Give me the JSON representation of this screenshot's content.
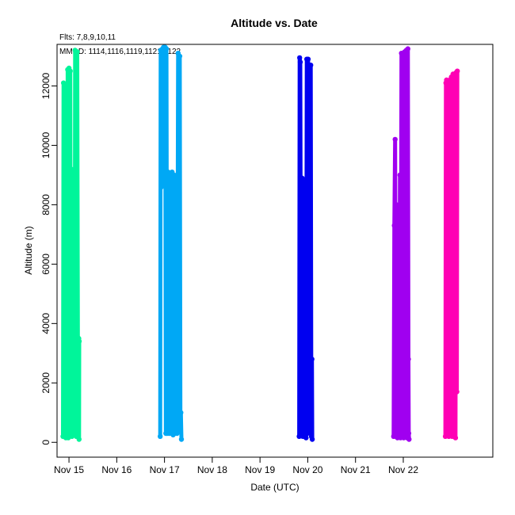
{
  "chart_data": {
    "type": "line",
    "title": "Altitude  vs. Date",
    "annotations": [
      "Flts: 7,8,9,10,11",
      "MMDD: 1114,1116,1119,1121,1122"
    ],
    "xlabel": "Date (UTC)",
    "ylabel": "Altitude (m)",
    "xlim": [
      "2019-11-14 18:00",
      "2019-11-23 21:00"
    ],
    "ylim": [
      -500,
      13400
    ],
    "x_ticks": [
      {
        "date": "2019-11-15",
        "label": "Nov 15"
      },
      {
        "date": "2019-11-16",
        "label": "Nov 16"
      },
      {
        "date": "2019-11-17",
        "label": "Nov 17"
      },
      {
        "date": "2019-11-18",
        "label": "Nov 18"
      },
      {
        "date": "2019-11-19",
        "label": "Nov 19"
      },
      {
        "date": "2019-11-20",
        "label": "Nov 20"
      },
      {
        "date": "2019-11-21",
        "label": "Nov 21"
      },
      {
        "date": "2019-11-22",
        "label": "Nov 22"
      }
    ],
    "y_ticks": [
      0,
      2000,
      4000,
      6000,
      8000,
      10000,
      12000
    ],
    "grid": false,
    "series": [
      {
        "color": "#00f59a",
        "x": [
          "2019-11-14 21:00",
          "2019-11-14 21:15",
          "2019-11-14 21:40",
          "2019-11-14 21:55",
          "2019-11-14 22:10",
          "2019-11-14 22:25",
          "2019-11-14 22:45",
          "2019-11-14 23:00",
          "2019-11-14 23:20",
          "2019-11-14 23:40",
          "2019-11-15 00:00",
          "2019-11-15 00:15",
          "2019-11-15 00:40",
          "2019-11-15 00:55",
          "2019-11-15 01:10",
          "2019-11-15 01:30",
          "2019-11-15 02:00",
          "2019-11-15 02:50",
          "2019-11-15 03:05",
          "2019-11-15 03:40",
          "2019-11-15 04:10",
          "2019-11-15 04:35",
          "2019-11-15 04:55",
          "2019-11-15 05:05",
          "2019-11-15 05:10"
        ],
        "y": [
          200,
          12100,
          11800,
          300,
          8800,
          150,
          8900,
          200,
          12550,
          150,
          12600,
          300,
          12500,
          400,
          9200,
          200,
          9000,
          300,
          13200,
          200,
          13150,
          400,
          3500,
          100,
          3400
        ]
      },
      {
        "color": "#00a8f5",
        "x": [
          "2019-11-16 21:50",
          "2019-11-16 22:05",
          "2019-11-16 22:30",
          "2019-11-16 23:00",
          "2019-11-16 23:30",
          "2019-11-17 00:00",
          "2019-11-17 00:20",
          "2019-11-17 00:40",
          "2019-11-17 01:00",
          "2019-11-17 01:20",
          "2019-11-17 01:50",
          "2019-11-17 02:20",
          "2019-11-17 02:50",
          "2019-11-17 03:20",
          "2019-11-17 03:50",
          "2019-11-17 04:20",
          "2019-11-17 04:50",
          "2019-11-17 05:20",
          "2019-11-17 05:50",
          "2019-11-17 06:20",
          "2019-11-17 06:50",
          "2019-11-17 07:20",
          "2019-11-17 07:40",
          "2019-11-17 08:00",
          "2019-11-17 08:15",
          "2019-11-17 08:30"
        ],
        "y": [
          200,
          13200,
          8600,
          13250,
          13300,
          9200,
          13300,
          300,
          13250,
          300,
          9100,
          300,
          9000,
          300,
          9100,
          250,
          9000,
          300,
          8900,
          300,
          13100,
          400,
          13000,
          600,
          1000,
          100
        ]
      },
      {
        "color": "#0000f0",
        "x": [
          "2019-11-19 19:40",
          "2019-11-19 19:55",
          "2019-11-19 20:15",
          "2019-11-19 20:40",
          "2019-11-19 21:05",
          "2019-11-19 21:30",
          "2019-11-19 21:55",
          "2019-11-19 22:20",
          "2019-11-19 22:45",
          "2019-11-19 23:10",
          "2019-11-19 23:30",
          "2019-11-19 23:50",
          "2019-11-20 00:10",
          "2019-11-20 00:30",
          "2019-11-20 00:50",
          "2019-11-20 01:10",
          "2019-11-20 01:30",
          "2019-11-20 01:50",
          "2019-11-20 02:05",
          "2019-11-20 02:15"
        ],
        "y": [
          200,
          12950,
          12800,
          300,
          8900,
          200,
          8850,
          200,
          8800,
          150,
          12900,
          300,
          12900,
          500,
          12700,
          400,
          12700,
          200,
          2800,
          100
        ]
      },
      {
        "color": "#a000f0",
        "x": [
          "2019-11-21 19:10",
          "2019-11-21 19:30",
          "2019-11-21 19:55",
          "2019-11-21 20:15",
          "2019-11-21 20:40",
          "2019-11-21 21:05",
          "2019-11-21 21:30",
          "2019-11-21 21:55",
          "2019-11-21 22:20",
          "2019-11-21 22:40",
          "2019-11-21 23:05",
          "2019-11-21 23:30",
          "2019-11-21 23:55",
          "2019-11-22 00:15",
          "2019-11-22 00:40",
          "2019-11-22 01:05",
          "2019-11-22 01:30",
          "2019-11-22 01:55",
          "2019-11-22 02:20",
          "2019-11-22 02:35",
          "2019-11-22 02:45",
          "2019-11-22 02:55"
        ],
        "y": [
          200,
          7300,
          10200,
          200,
          8000,
          150,
          7200,
          200,
          9000,
          150,
          13100,
          200,
          9500,
          150,
          13150,
          200,
          13200,
          150,
          13250,
          2800,
          300,
          100
        ]
      },
      {
        "color": "#ff00b4",
        "x": [
          "2019-11-22 21:10",
          "2019-11-22 21:25",
          "2019-11-22 21:45",
          "2019-11-22 22:05",
          "2019-11-22 22:30",
          "2019-11-22 22:55",
          "2019-11-22 23:20",
          "2019-11-22 23:45",
          "2019-11-23 00:10",
          "2019-11-23 00:35",
          "2019-11-23 01:00",
          "2019-11-23 01:25",
          "2019-11-23 01:50",
          "2019-11-23 02:15",
          "2019-11-23 02:35",
          "2019-11-23 02:55",
          "2019-11-23 03:10"
        ],
        "y": [
          200,
          12100,
          12200,
          400,
          12150,
          200,
          12200,
          300,
          12300,
          200,
          12400,
          1800,
          12400,
          150,
          12450,
          1700,
          12500
        ]
      }
    ]
  }
}
